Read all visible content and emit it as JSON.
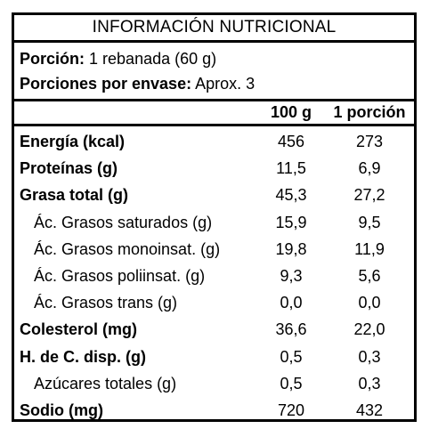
{
  "title": "INFORMACIÓN NUTRICIONAL",
  "portion": {
    "label": "Porción:",
    "value": "1 rebanada (60 g)"
  },
  "servings": {
    "label": "Porciones por envase:",
    "value": "Aprox. 3"
  },
  "columns": {
    "per100": "100 g",
    "perPortion": "1 porción"
  },
  "rows": [
    {
      "name": "Energía (kcal)",
      "per100": "456",
      "perPortion": "273"
    },
    {
      "name": "Proteínas (g)",
      "per100": "11,5",
      "perPortion": "6,9"
    },
    {
      "name": "Grasa total (g)",
      "per100": "45,3",
      "perPortion": "27,2"
    },
    {
      "name": "Ác. Grasos saturados (g)",
      "per100": "15,9",
      "perPortion": "9,5"
    },
    {
      "name": "Ác. Grasos monoinsat. (g)",
      "per100": "19,8",
      "perPortion": "11,9"
    },
    {
      "name": "Ác. Grasos poliinsat. (g)",
      "per100": "9,3",
      "perPortion": "5,6"
    },
    {
      "name": "Ác. Grasos trans (g)",
      "per100": "0,0",
      "perPortion": "0,0"
    },
    {
      "name": "Colesterol (mg)",
      "per100": "36,6",
      "perPortion": "22,0"
    },
    {
      "name": "H. de C. disp. (g)",
      "per100": "0,5",
      "perPortion": "0,3"
    },
    {
      "name": "Azúcares totales (g)",
      "per100": "0,5",
      "perPortion": "0,3"
    },
    {
      "name": "Sodio (mg)",
      "per100": "720",
      "perPortion": "432"
    }
  ]
}
